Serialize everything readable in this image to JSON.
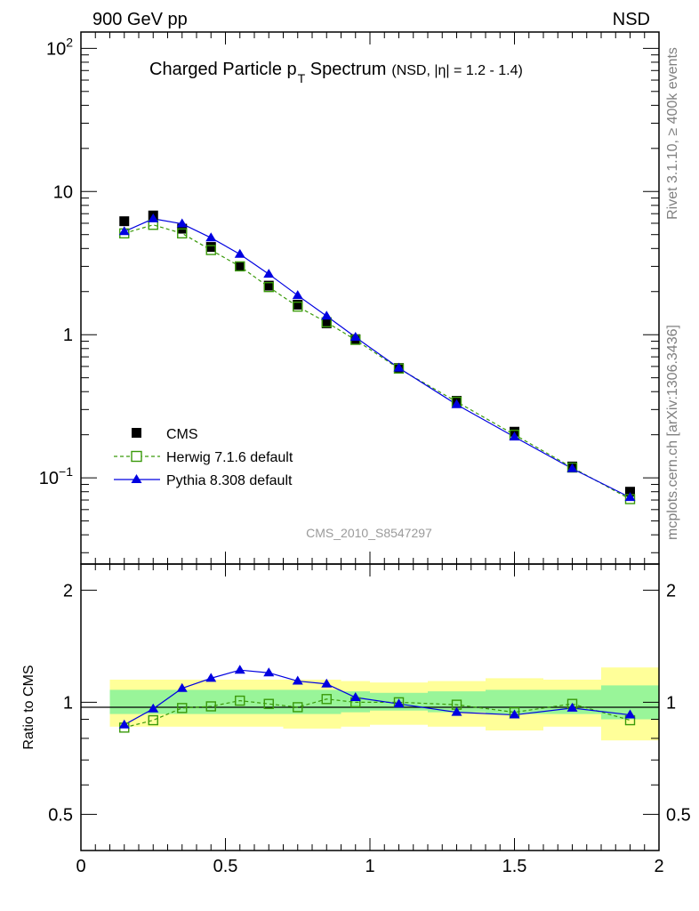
{
  "header": {
    "left": "900 GeV pp",
    "right": "NSD"
  },
  "side_labels": {
    "rivet": "Rivet 3.1.10, ≥ 400k events",
    "mcplots": "mcplots.cern.ch [arXiv:1306.3436]"
  },
  "colors": {
    "cms": "#000000",
    "herwig": "#3a9a0a",
    "pythia": "#0000e0",
    "band_inner": "#99f599",
    "band_outer": "#ffff99"
  },
  "chart_data": [
    {
      "type": "scatter",
      "panel": "main",
      "title": "Charged Particle p",
      "title_subscript": "T",
      "title_main": " Spectrum",
      "title_suffix": "(NSD, |η| = 1.2 - 1.4)",
      "analysis_label": "CMS_2010_S8547297",
      "yscale": "log",
      "xlim": [
        0,
        2
      ],
      "ylim": [
        0.025,
        130
      ],
      "ytick_labels": [
        {
          "value": 100,
          "base": "10",
          "exp": "2"
        },
        {
          "value": 10,
          "base": "10",
          "exp": ""
        },
        {
          "value": 1,
          "base": "1",
          "exp": ""
        },
        {
          "value": 0.1,
          "base": "10",
          "exp": "−1"
        }
      ],
      "legend": [
        "CMS",
        "Herwig 7.1.6 default",
        "Pythia 8.308 default"
      ],
      "x": [
        0.15,
        0.25,
        0.35,
        0.45,
        0.55,
        0.65,
        0.75,
        0.85,
        0.95,
        1.1,
        1.3,
        1.5,
        1.7,
        1.9
      ],
      "series": [
        {
          "name": "CMS",
          "marker": "filled-square",
          "line": "none",
          "values": [
            6.2,
            6.8,
            5.5,
            4.1,
            3.0,
            2.2,
            1.62,
            1.2,
            0.93,
            0.585,
            0.345,
            0.21,
            0.12,
            0.08
          ]
        },
        {
          "name": "Herwig 7.1.6 default",
          "marker": "open-square",
          "line": "dashed",
          "values": [
            5.1,
            5.85,
            5.1,
            3.9,
            3.0,
            2.15,
            1.57,
            1.22,
            0.92,
            0.58,
            0.34,
            0.2,
            0.118,
            0.071
          ]
        },
        {
          "name": "Pythia 8.308 default",
          "marker": "filled-triangle",
          "line": "solid",
          "values": [
            5.25,
            6.45,
            5.95,
            4.75,
            3.65,
            2.65,
            1.88,
            1.35,
            0.96,
            0.585,
            0.325,
            0.193,
            0.116,
            0.073
          ]
        }
      ]
    },
    {
      "type": "scatter",
      "panel": "ratio",
      "ylabel": "Ratio to CMS",
      "yscale": "log",
      "xlim": [
        0,
        2
      ],
      "ylim": [
        0.4,
        2.35
      ],
      "ytick_labels": [
        {
          "value": 0.5,
          "label": "0.5"
        },
        {
          "value": 1,
          "label": "1"
        },
        {
          "value": 2,
          "label": "2"
        }
      ],
      "xtick_labels": [
        {
          "value": 0,
          "label": "0"
        },
        {
          "value": 0.5,
          "label": "0.5"
        },
        {
          "value": 1,
          "label": "1"
        },
        {
          "value": 1.5,
          "label": "1.5"
        },
        {
          "value": 2,
          "label": "2"
        }
      ],
      "x": [
        0.15,
        0.25,
        0.35,
        0.45,
        0.55,
        0.65,
        0.75,
        0.85,
        0.95,
        1.1,
        1.3,
        1.5,
        1.7,
        1.9
      ],
      "bands": {
        "edges": [
          0.1,
          0.2,
          0.3,
          0.4,
          0.5,
          0.6,
          0.7,
          0.8,
          0.9,
          1.0,
          1.2,
          1.4,
          1.6,
          1.8,
          2.0
        ],
        "inner_low": [
          0.93,
          0.93,
          0.93,
          0.93,
          0.93,
          0.93,
          0.93,
          0.93,
          0.94,
          0.95,
          0.94,
          0.93,
          0.93,
          0.9
        ],
        "inner_high": [
          1.08,
          1.08,
          1.08,
          1.08,
          1.08,
          1.08,
          1.08,
          1.08,
          1.07,
          1.06,
          1.07,
          1.08,
          1.08,
          1.11
        ],
        "outer_low": [
          0.86,
          0.86,
          0.86,
          0.86,
          0.86,
          0.86,
          0.85,
          0.85,
          0.86,
          0.87,
          0.86,
          0.84,
          0.86,
          0.79
        ],
        "outer_high": [
          1.15,
          1.15,
          1.15,
          1.15,
          1.15,
          1.15,
          1.15,
          1.15,
          1.14,
          1.13,
          1.14,
          1.16,
          1.15,
          1.24
        ]
      },
      "series": [
        {
          "name": "Herwig 7.1.6 default",
          "values": [
            0.855,
            0.895,
            0.965,
            0.975,
            1.01,
            0.99,
            0.97,
            1.02,
            1.0,
            1.0,
            0.985,
            0.94,
            0.99,
            0.895
          ]
        },
        {
          "name": "Pythia 8.308 default",
          "values": [
            0.87,
            0.96,
            1.09,
            1.16,
            1.22,
            1.2,
            1.14,
            1.12,
            1.03,
            0.99,
            0.94,
            0.925,
            0.965,
            0.925
          ]
        }
      ]
    }
  ]
}
